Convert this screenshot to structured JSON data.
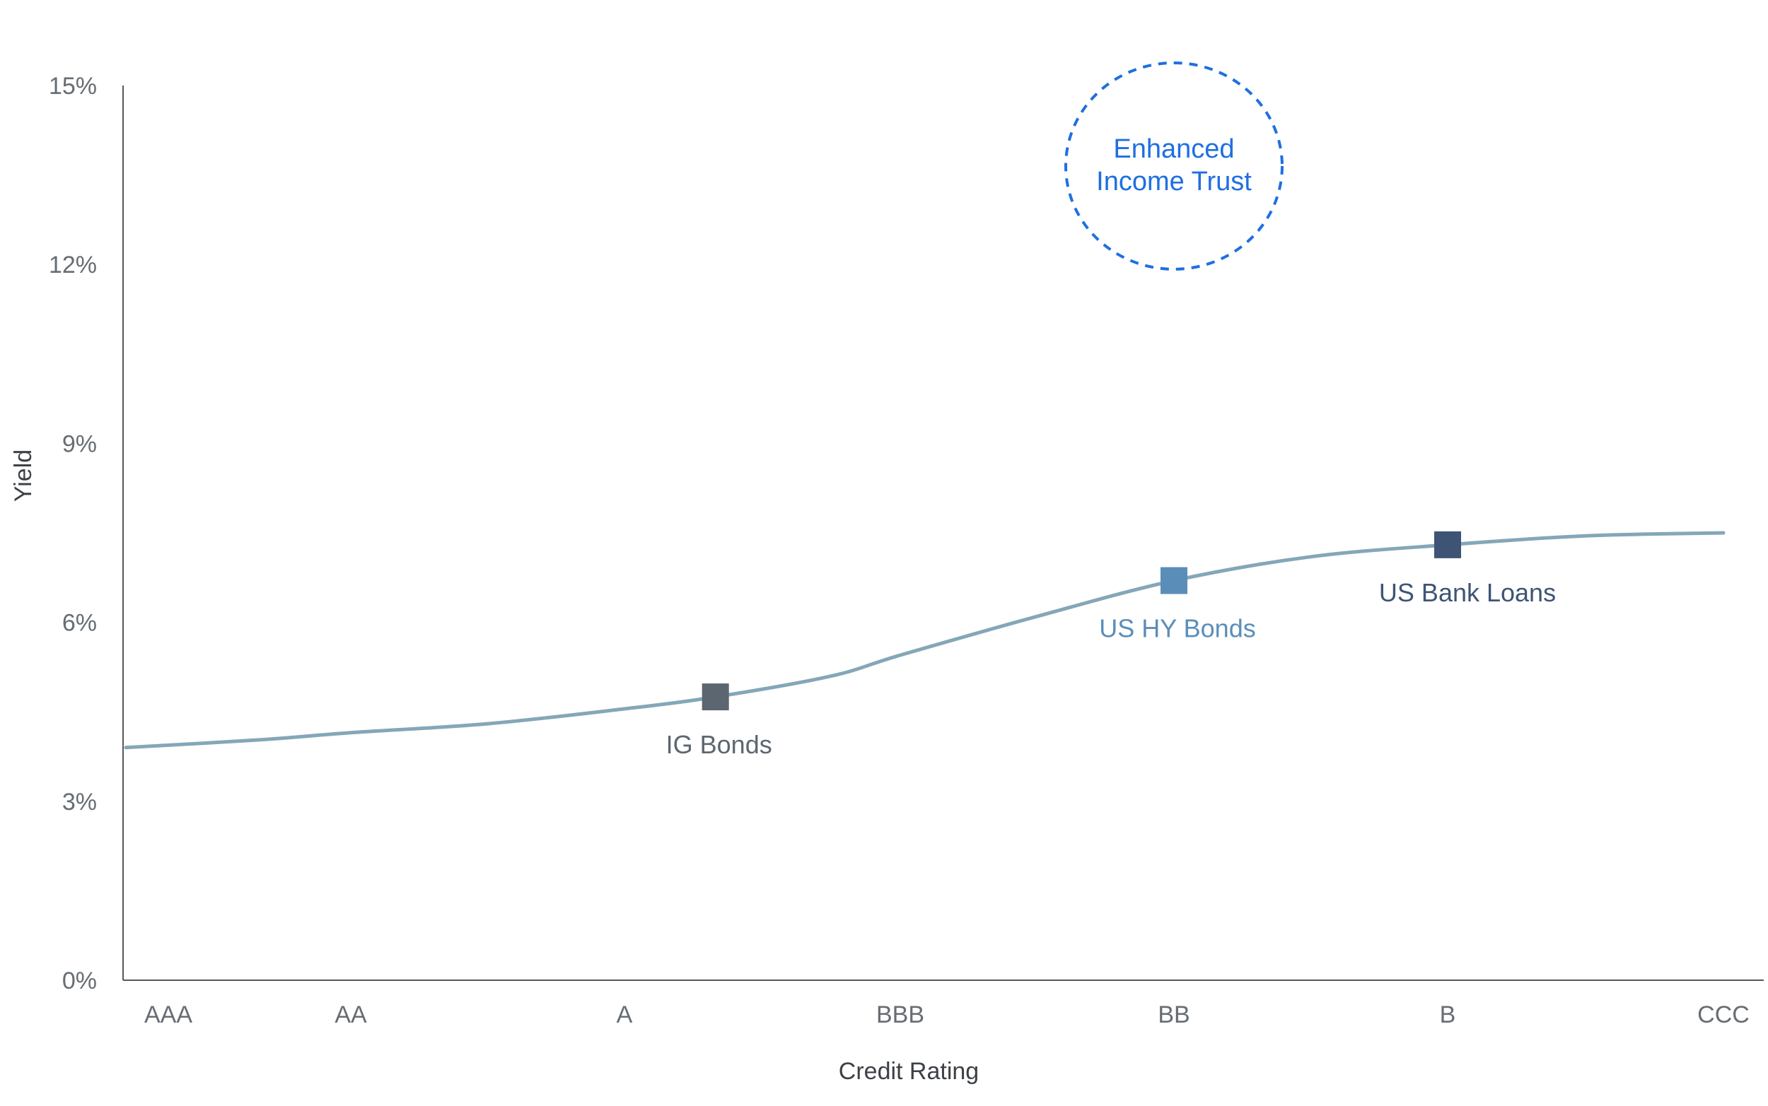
{
  "chart_data": {
    "type": "line",
    "title": "",
    "xlabel": "Credit Rating",
    "ylabel": "Yield",
    "categories": [
      "AAA",
      "AA",
      "A",
      "BBB",
      "BB",
      "B",
      "CCC"
    ],
    "yticks": [
      "0%",
      "3%",
      "6%",
      "9%",
      "12%",
      "15%"
    ],
    "ytick_values": [
      0,
      3,
      6,
      9,
      12,
      15
    ],
    "ylim": [
      0,
      15
    ],
    "grid": false,
    "legend": "none",
    "curve": {
      "x": [
        0,
        0.5,
        1,
        1.5,
        2,
        2.33,
        2.75,
        3,
        3.5,
        4,
        4.5,
        5,
        5.5,
        6
      ],
      "y": [
        3.9,
        4.03,
        4.15,
        4.3,
        4.55,
        4.75,
        5.1,
        5.45,
        6.1,
        6.7,
        7.1,
        7.3,
        7.45,
        7.5
      ],
      "color": "#84a7b8"
    },
    "points": [
      {
        "label": "IG Bonds",
        "x": 2.33,
        "y": 4.75,
        "color": "#5c6670",
        "label_color": "#5c6670"
      },
      {
        "label": "US HY Bonds",
        "x": 4.0,
        "y": 6.7,
        "color": "#5b8db9",
        "label_color": "#5b8db9"
      },
      {
        "label": "US Bank Loans",
        "x": 5.0,
        "y": 7.3,
        "color": "#3e5475",
        "label_color": "#3e5475"
      }
    ],
    "annotation": {
      "lines": [
        "Enhanced",
        "Income Trust"
      ],
      "x": 4.0,
      "y": 13.65,
      "color": "#1f6fe0",
      "style": "dashed-circle"
    }
  }
}
